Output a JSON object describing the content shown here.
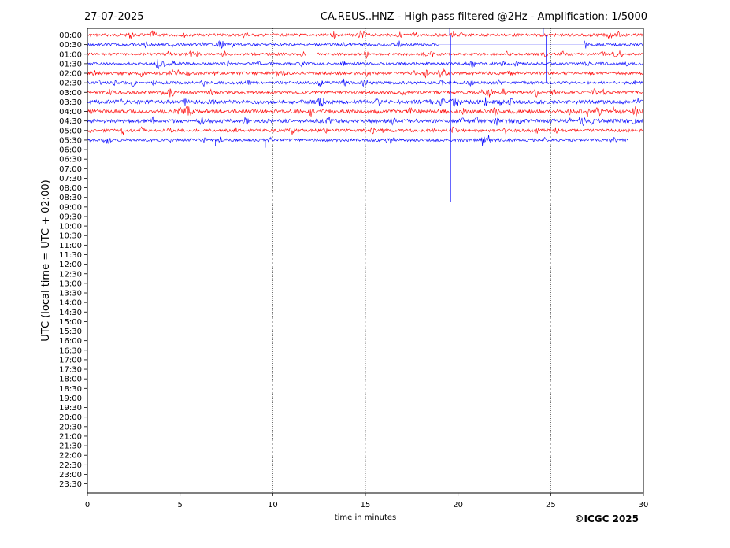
{
  "header": {
    "date": "27-07-2025",
    "title": "CA.REUS..HNZ - High pass filtered @2Hz - Amplification: 1/5000"
  },
  "footer": {
    "copyright": "©ICGC 2025"
  },
  "colors": {
    "trace_a": "#ff0000",
    "trace_b": "#0000ff",
    "axes": "#000000"
  },
  "chart_data": {
    "type": "line",
    "subtype": "helicorder",
    "title": "CA.REUS..HNZ - High pass filtered @2Hz - Amplification: 1/5000",
    "xlabel": "time in minutes",
    "ylabel": "UTC (local time = UTC + 02:00)",
    "xlim": [
      0,
      30
    ],
    "x_ticks": [
      "0",
      "5",
      "10",
      "15",
      "20",
      "25",
      "30"
    ],
    "x_gridlines": [
      5,
      10,
      15,
      20,
      25
    ],
    "y_ticks": [
      "00:00",
      "00:30",
      "01:00",
      "01:30",
      "02:00",
      "02:30",
      "03:00",
      "03:30",
      "04:00",
      "04:30",
      "05:00",
      "05:30",
      "06:00",
      "06:30",
      "07:00",
      "07:30",
      "08:00",
      "08:30",
      "09:00",
      "09:30",
      "10:00",
      "10:30",
      "11:00",
      "11:30",
      "12:00",
      "12:30",
      "13:00",
      "13:30",
      "14:00",
      "14:30",
      "15:00",
      "15:30",
      "16:00",
      "16:30",
      "17:00",
      "17:30",
      "18:00",
      "18:30",
      "19:00",
      "19:30",
      "20:00",
      "20:30",
      "21:00",
      "21:30",
      "22:00",
      "22:30",
      "23:00",
      "23:30"
    ],
    "color_cycle": [
      "#ff0000",
      "#0000ff"
    ],
    "traces": [
      {
        "label": "00:00",
        "x_start": 0,
        "x_end": 30,
        "level": 0.55,
        "color": "#ff0000"
      },
      {
        "label": "00:30",
        "x_start": 0,
        "x_end": 30,
        "level": 0.45,
        "color": "#0000ff",
        "gaps": [
          [
            19,
            26.8
          ]
        ]
      },
      {
        "label": "01:00",
        "x_start": 0,
        "x_end": 30,
        "level": 0.45,
        "color": "#ff0000",
        "gaps": [
          [
            11.8,
            12.4
          ]
        ]
      },
      {
        "label": "01:30",
        "x_start": 0,
        "x_end": 30,
        "level": 0.5,
        "color": "#0000ff"
      },
      {
        "label": "02:00",
        "x_start": 0,
        "x_end": 30,
        "level": 0.6,
        "color": "#ff0000"
      },
      {
        "label": "02:30",
        "x_start": 0,
        "x_end": 30,
        "level": 0.55,
        "color": "#0000ff"
      },
      {
        "label": "03:00",
        "x_start": 0,
        "x_end": 30,
        "level": 0.6,
        "color": "#ff0000"
      },
      {
        "label": "03:30",
        "x_start": 0,
        "x_end": 30,
        "level": 0.85,
        "color": "#0000ff"
      },
      {
        "label": "04:00",
        "x_start": 0,
        "x_end": 30,
        "level": 0.85,
        "color": "#ff0000"
      },
      {
        "label": "04:30",
        "x_start": 0,
        "x_end": 30,
        "level": 0.8,
        "color": "#0000ff"
      },
      {
        "label": "05:00",
        "x_start": 0,
        "x_end": 30,
        "level": 0.6,
        "color": "#ff0000"
      },
      {
        "label": "05:30",
        "x_start": 0,
        "x_end": 29.2,
        "level": 0.55,
        "color": "#0000ff"
      }
    ],
    "spikes": [
      {
        "trace": "00:00",
        "x": 19.55,
        "amplitude_rows": 0.9,
        "direction": "up",
        "color": "#0000ff"
      },
      {
        "trace": "00:00",
        "x": 19.6,
        "amplitude_rows": 17.5,
        "direction": "down",
        "color": "#0000ff"
      },
      {
        "trace": "00:00",
        "x": 24.6,
        "amplitude_rows": 0.9,
        "direction": "up",
        "color": "#0000ff"
      },
      {
        "trace": "00:00",
        "x": 24.75,
        "amplitude_rows": 5,
        "direction": "down",
        "color": "#0000ff"
      },
      {
        "trace": "05:30",
        "x": 6.9,
        "amplitude_rows": 0.6,
        "direction": "down",
        "color": "#0000ff"
      },
      {
        "trace": "05:30",
        "x": 9.6,
        "amplitude_rows": 0.8,
        "direction": "down",
        "color": "#0000ff"
      }
    ],
    "grid": "vertical dotted"
  }
}
